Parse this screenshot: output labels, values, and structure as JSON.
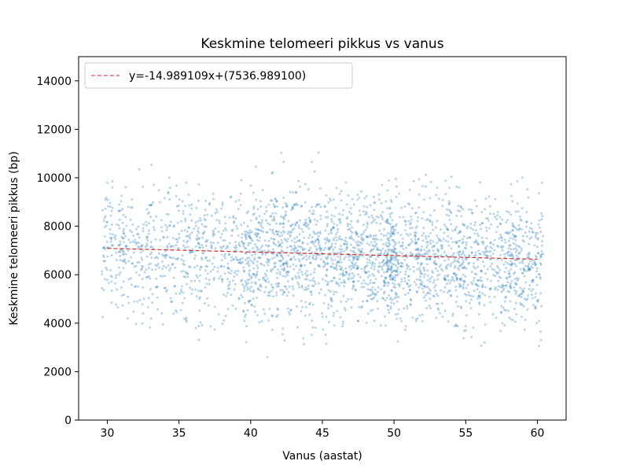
{
  "chart_data": {
    "type": "scatter",
    "title": "Keskmine telomeeri pikkus vs vanus",
    "xlabel": "Vanus (aastat)",
    "ylabel": "Keskmine telomeeri pikkus (bp)",
    "xlim": [
      28,
      62
    ],
    "ylim": [
      0,
      15000
    ],
    "x_ticks": [
      30,
      35,
      40,
      45,
      50,
      55,
      60
    ],
    "y_ticks": [
      0,
      2000,
      4000,
      6000,
      8000,
      10000,
      12000,
      14000
    ],
    "x_tick_labels": [
      "30",
      "35",
      "40",
      "45",
      "50",
      "55",
      "60"
    ],
    "y_tick_labels": [
      "0",
      "2000",
      "4000",
      "6000",
      "8000",
      "10000",
      "12000",
      "14000"
    ],
    "grid": false,
    "legend_position": "top-left",
    "series": [
      {
        "kind": "points",
        "color": "#1f77b4",
        "x_range": [
          29.5,
          60.5
        ],
        "y_center": 6800,
        "y_spread": 1900
      },
      {
        "name": "y=-14.989109x+(7536.989100)",
        "kind": "line",
        "style": "dashed",
        "color": "#d62728",
        "slope": -14.989109,
        "intercept": 7536.9891,
        "x": [
          30,
          60
        ],
        "y": [
          7087.32,
          6637.64
        ]
      }
    ]
  }
}
